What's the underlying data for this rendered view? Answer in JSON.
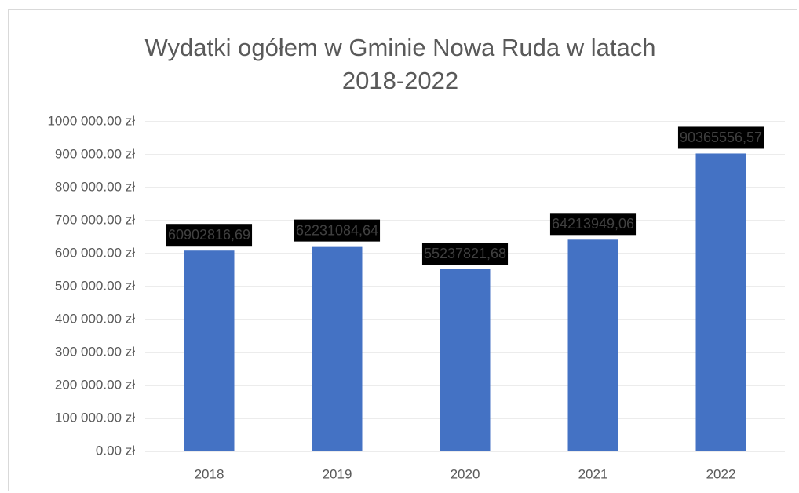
{
  "chart_data": {
    "type": "bar",
    "title": "Wydatki ogółem w Gminie Nowa Ruda w latach 2018-2022",
    "categories": [
      "2018",
      "2019",
      "2020",
      "2021",
      "2022"
    ],
    "values": [
      609028.1669,
      622310.8464,
      552378.2168,
      642139.4906,
      903655.5657
    ],
    "value_labels": [
      "60902816,69",
      "62231084,64",
      "55237821,68",
      "64213949,06",
      "90365556,57"
    ],
    "color": "#4472c4",
    "ylim": [
      0,
      1000000
    ],
    "yticks": [
      {
        "value": 0,
        "label": "0.00 zł"
      },
      {
        "value": 100000,
        "label": "100 000.00 zł"
      },
      {
        "value": 200000,
        "label": "200 000.00 zł"
      },
      {
        "value": 300000,
        "label": "300 000.00 zł"
      },
      {
        "value": 400000,
        "label": "400 000.00 zł"
      },
      {
        "value": 500000,
        "label": "500 000.00 zł"
      },
      {
        "value": 600000,
        "label": "600 000.00 zł"
      },
      {
        "value": 700000,
        "label": "700 000.00 zł"
      },
      {
        "value": 800000,
        "label": "800 000.00 zł"
      },
      {
        "value": 900000,
        "label": "900 000.00 zł"
      },
      {
        "value": 1000000,
        "label": "1000 000.00 zł"
      }
    ],
    "grid": true
  }
}
